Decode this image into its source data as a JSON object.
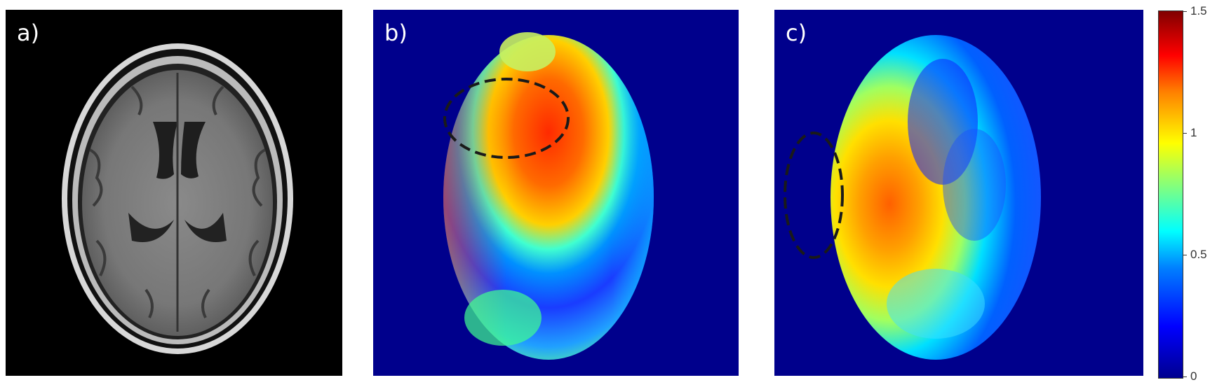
{
  "panels": [
    {
      "label": "a)"
    },
    {
      "label": "b)"
    },
    {
      "label": "c)"
    }
  ],
  "colorbar": {
    "ticks": [
      "1.5",
      "1",
      "0.5",
      "0"
    ],
    "colormap": "jet",
    "range": [
      0,
      1.5
    ]
  },
  "colors": {
    "background": "#00008c",
    "mri_background": "#000000"
  }
}
